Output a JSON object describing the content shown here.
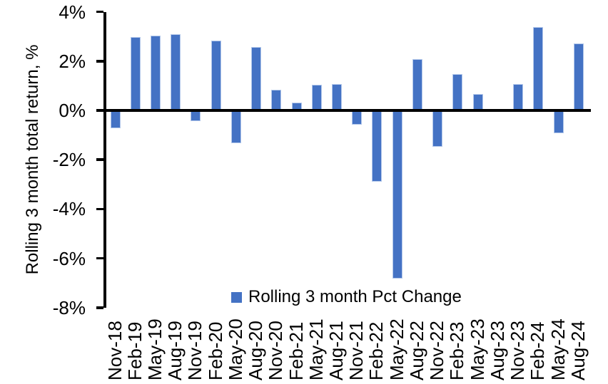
{
  "chart_data": {
    "type": "bar",
    "title": "",
    "xlabel": "",
    "ylabel": "Rolling 3 month total return, %",
    "legend_position": "bottom-center-inside-plot",
    "grid": false,
    "bar_color": "#4472C4",
    "bar_outline_color": "#A4BDE6",
    "axis_color": "#000000",
    "ylim": [
      -8,
      4
    ],
    "yticks": [
      {
        "value": 4,
        "label": "4%"
      },
      {
        "value": 2,
        "label": "2%"
      },
      {
        "value": 0,
        "label": "0%"
      },
      {
        "value": -2,
        "label": "-2%"
      },
      {
        "value": -4,
        "label": "-4%"
      },
      {
        "value": -6,
        "label": "-6%"
      },
      {
        "value": -8,
        "label": "-8%"
      }
    ],
    "categories": [
      "Nov-18",
      "Feb-19",
      "May-19",
      "Aug-19",
      "Nov-19",
      "Feb-20",
      "May-20",
      "Aug-20",
      "Nov-20",
      "Feb-21",
      "May-21",
      "Aug-21",
      "Nov-21",
      "Feb-22",
      "May-22",
      "Aug-22",
      "Nov-22",
      "Feb-23",
      "May-23",
      "Aug-23",
      "Nov-23",
      "Feb-24",
      "May-24",
      "Aug-24"
    ],
    "series": [
      {
        "name": "Rolling 3 month Pct Change",
        "values": [
          -0.7,
          2.95,
          3.0,
          3.05,
          -0.4,
          2.8,
          -1.3,
          2.55,
          0.8,
          0.3,
          1.0,
          1.05,
          -0.55,
          -2.85,
          -6.8,
          2.05,
          -1.45,
          1.45,
          0.65,
          0.0,
          1.05,
          3.35,
          -0.9,
          2.7
        ]
      }
    ]
  }
}
